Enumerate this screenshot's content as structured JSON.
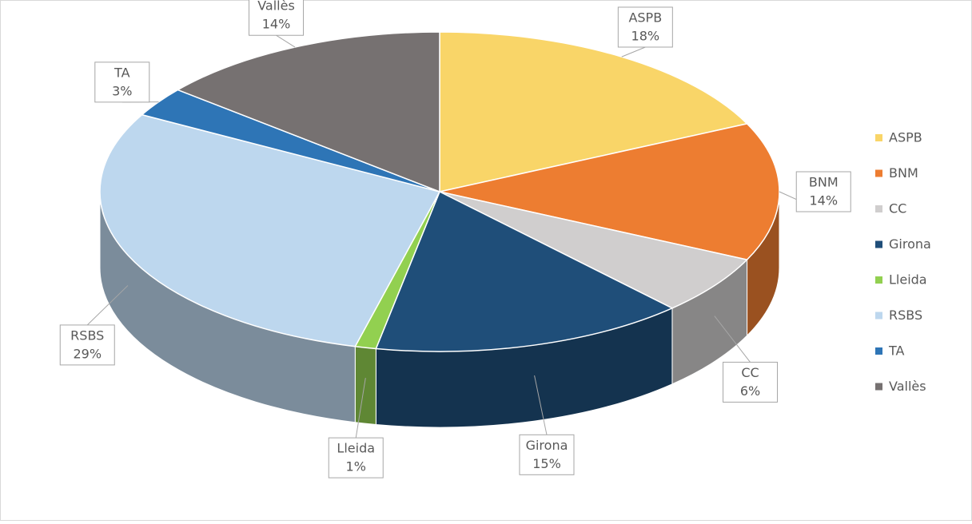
{
  "chart_data": {
    "type": "pie3d",
    "categories": [
      "ASPB",
      "BNM",
      "CC",
      "Girona",
      "Lleida",
      "RSBS",
      "TA",
      "Vallès"
    ],
    "values": [
      18,
      14,
      6,
      15,
      1,
      29,
      3,
      14
    ],
    "value_labels": [
      "18%",
      "14%",
      "6%",
      "15%",
      "1%",
      "29%",
      "3%",
      "14%"
    ],
    "colors": [
      "#f9d568",
      "#ed7d31",
      "#d0cece",
      "#1f4e79",
      "#92d050",
      "#bdd7ee",
      "#2e75b6",
      "#767171"
    ],
    "legend": "right"
  }
}
